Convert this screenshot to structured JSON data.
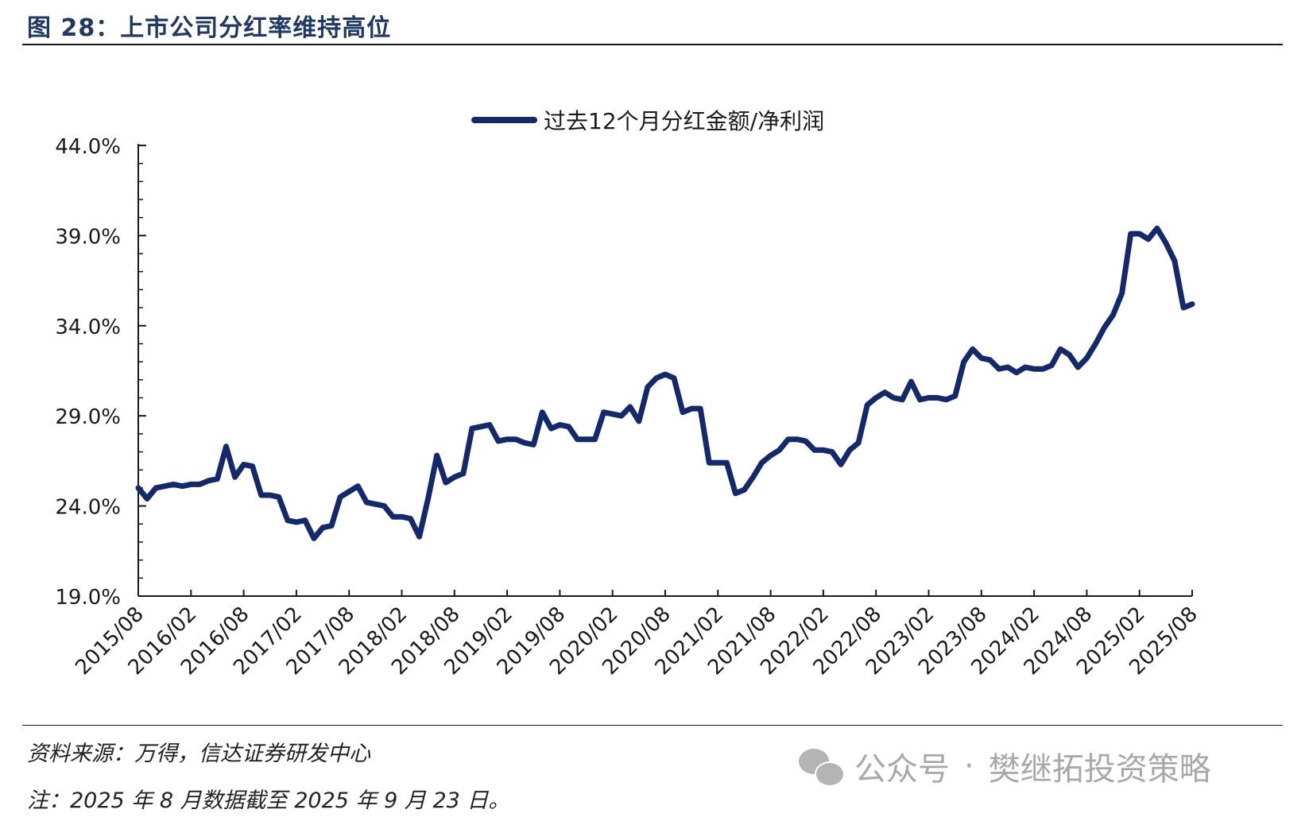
{
  "figure": {
    "title": "图 28：上市公司分红率维持高位",
    "source": "资料来源：万得，信达证券研发中心",
    "note": "注：2025 年 8 月数据截至 2025 年 9 月 23 日。"
  },
  "watermark": {
    "icon": "wechat-icon",
    "label": "公众号",
    "separator": "·",
    "name": "樊继拓投资策略"
  },
  "chart_data": {
    "type": "line",
    "series": [
      {
        "name": "过去12个月分红金额/净利润",
        "color": "#13296b",
        "values": [
          25.0,
          24.4,
          25.0,
          25.1,
          25.2,
          25.1,
          25.2,
          25.2,
          25.4,
          25.5,
          27.3,
          25.6,
          26.3,
          26.2,
          24.6,
          24.6,
          24.5,
          23.2,
          23.1,
          23.2,
          22.2,
          22.8,
          22.9,
          24.5,
          24.8,
          25.1,
          24.2,
          24.1,
          24.0,
          23.4,
          23.4,
          23.3,
          22.3,
          24.4,
          26.8,
          25.3,
          25.6,
          25.8,
          28.3,
          28.4,
          28.5,
          27.6,
          27.7,
          27.7,
          27.5,
          27.4,
          29.2,
          28.3,
          28.5,
          28.4,
          27.7,
          27.7,
          27.7,
          29.2,
          29.1,
          29.0,
          29.5,
          28.7,
          30.6,
          31.1,
          31.3,
          31.1,
          29.2,
          29.4,
          29.4,
          26.4,
          26.4,
          26.4,
          24.7,
          24.9,
          25.6,
          26.4,
          26.8,
          27.1,
          27.7,
          27.7,
          27.6,
          27.1,
          27.1,
          27.0,
          26.3,
          27.1,
          27.5,
          29.6,
          30.0,
          30.3,
          30.0,
          29.9,
          30.9,
          29.9,
          30.0,
          30.0,
          29.9,
          30.1,
          32.0,
          32.7,
          32.2,
          32.1,
          31.6,
          31.7,
          31.4,
          31.7,
          31.6,
          31.6,
          31.8,
          32.7,
          32.4,
          31.7,
          32.2,
          33.0,
          33.9,
          34.6,
          35.8,
          39.1,
          39.1,
          38.8,
          39.4,
          38.6,
          37.6,
          35.0,
          35.2
        ]
      }
    ],
    "x_start": "2015/08",
    "x_end": "2025/08",
    "x_ticks": [
      "2015/08",
      "2016/02",
      "2016/08",
      "2017/02",
      "2017/08",
      "2018/02",
      "2018/08",
      "2019/02",
      "2019/08",
      "2020/02",
      "2020/08",
      "2021/02",
      "2021/08",
      "2022/02",
      "2022/08",
      "2023/02",
      "2023/08",
      "2024/02",
      "2024/08",
      "2025/02",
      "2025/08"
    ],
    "y_ticks": [
      "19.0%",
      "24.0%",
      "29.0%",
      "34.0%",
      "39.0%",
      "44.0%"
    ],
    "ylim": [
      19.0,
      44.0
    ],
    "y_minor_step": 1.0,
    "grid": false,
    "legend_position": "top-center"
  }
}
